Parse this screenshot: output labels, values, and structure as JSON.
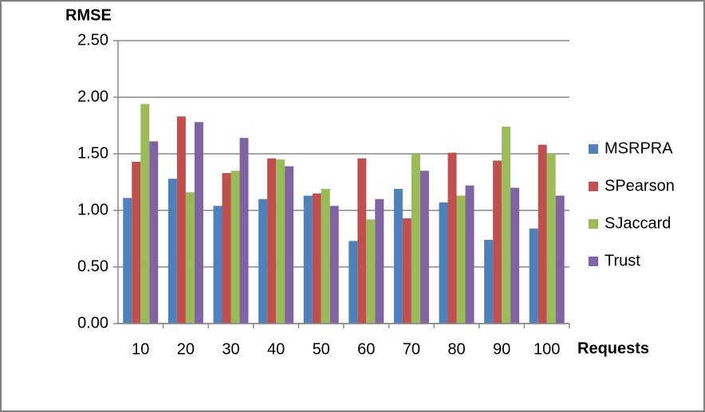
{
  "chart_data": {
    "type": "bar",
    "y_label": "RMSE",
    "x_label": "Requests",
    "categories": [
      "10",
      "20",
      "30",
      "40",
      "50",
      "60",
      "70",
      "80",
      "90",
      "100"
    ],
    "series": [
      {
        "name": "MSRPRA",
        "color": "#4f81bd",
        "values": [
          1.11,
          1.28,
          1.04,
          1.1,
          1.13,
          0.73,
          1.19,
          1.07,
          0.74,
          0.84
        ]
      },
      {
        "name": "SPearson",
        "color": "#c0504d",
        "values": [
          1.43,
          1.83,
          1.33,
          1.46,
          1.15,
          1.46,
          0.93,
          1.51,
          1.44,
          1.58
        ]
      },
      {
        "name": "SJaccard",
        "color": "#9bbb59",
        "values": [
          1.94,
          1.16,
          1.35,
          1.45,
          1.19,
          0.92,
          1.5,
          1.13,
          1.74,
          1.5
        ]
      },
      {
        "name": "Trust",
        "color": "#8064a2",
        "values": [
          1.61,
          1.78,
          1.64,
          1.39,
          1.04,
          1.1,
          1.35,
          1.22,
          1.2,
          1.13
        ]
      }
    ],
    "ylim": [
      0,
      2.5
    ],
    "yticks": [
      {
        "value": 0,
        "label": "0.00"
      },
      {
        "value": 0.5,
        "label": "0.50"
      },
      {
        "value": 1,
        "label": "1.00"
      },
      {
        "value": 1.5,
        "label": "1.50"
      },
      {
        "value": 2,
        "label": "2.00"
      },
      {
        "value": 2.5,
        "label": "2.50"
      }
    ],
    "grid": true,
    "legend": "right"
  }
}
